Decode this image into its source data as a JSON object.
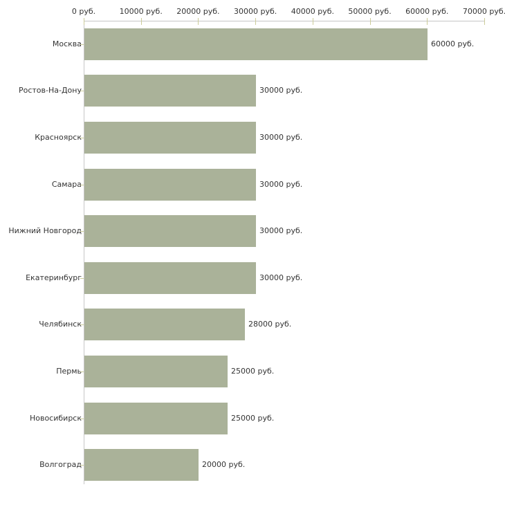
{
  "chart_data": {
    "type": "bar",
    "orientation": "horizontal",
    "title": "",
    "xlabel": "",
    "ylabel": "",
    "categories": [
      "Москва",
      "Ростов-На-Дону",
      "Красноярск",
      "Самара",
      "Нижний Новгород",
      "Екатеринбург",
      "Челябинск",
      "Пермь",
      "Новосибирск",
      "Волгоград"
    ],
    "values": [
      60000,
      30000,
      30000,
      30000,
      30000,
      30000,
      28000,
      25000,
      25000,
      20000
    ],
    "value_labels": [
      "60000 руб.",
      "30000 руб.",
      "30000 руб.",
      "30000 руб.",
      "30000 руб.",
      "30000 руб.",
      "28000 руб.",
      "25000 руб.",
      "25000 руб.",
      "20000 руб."
    ],
    "x_axis": {
      "position": "top",
      "min": 0,
      "max": 70000,
      "tick_values": [
        0,
        10000,
        20000,
        30000,
        40000,
        50000,
        60000,
        70000
      ],
      "tick_labels": [
        "0 руб.",
        "10000 руб.",
        "20000 руб.",
        "30000 руб.",
        "40000 руб.",
        "50000 руб.",
        "60000 руб.",
        "70000 руб."
      ]
    },
    "grid": false,
    "legend": false,
    "colors": {
      "bar_fill": "#aab299",
      "axis_line": "#c6c6c6",
      "tick_mark": "#cccc99",
      "text": "#333333",
      "background": "#ffffff"
    }
  }
}
